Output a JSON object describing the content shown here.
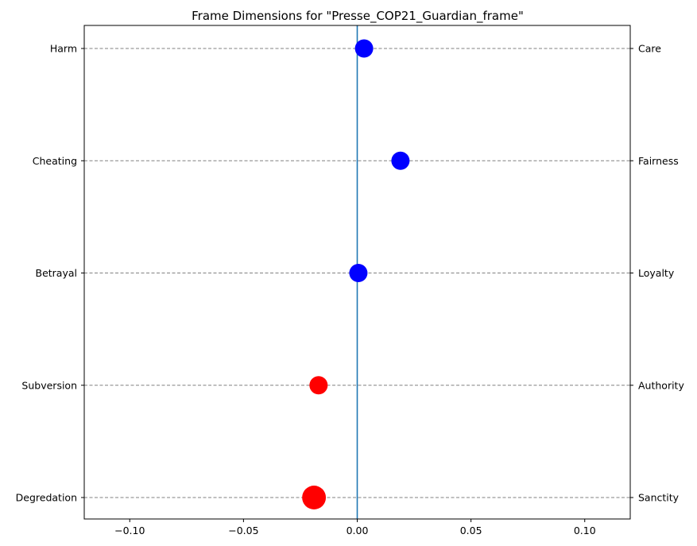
{
  "chart_data": {
    "type": "scatter",
    "title": "Frame Dimensions for \"Presse_COP21_Guardian_frame\"",
    "xlabel": "",
    "ylabel": "",
    "xlim": [
      -0.12,
      0.12
    ],
    "x_ticks": [
      -0.1,
      -0.05,
      0.0,
      0.05,
      0.1
    ],
    "x_tick_labels": [
      "−0.10",
      "−0.05",
      "0.00",
      "0.05",
      "0.10"
    ],
    "left_labels": [
      "Harm",
      "Cheating",
      "Betrayal",
      "Subversion",
      "Degredation"
    ],
    "right_labels": [
      "Care",
      "Fairness",
      "Loyalty",
      "Authority",
      "Sanctity"
    ],
    "points": [
      {
        "x": 0.003,
        "value_size": 1.0,
        "color": "#0000ff"
      },
      {
        "x": 0.019,
        "value_size": 1.0,
        "color": "#0000ff"
      },
      {
        "x": 0.0005,
        "value_size": 1.0,
        "color": "#0000ff"
      },
      {
        "x": -0.017,
        "value_size": 1.0,
        "color": "#ff0000"
      },
      {
        "x": -0.019,
        "value_size": 1.3,
        "color": "#ff0000"
      }
    ],
    "zero_line": {
      "x": 0,
      "color": "#1f77b4"
    },
    "grid": {
      "horizontal": true,
      "style": "dashed",
      "color": "#808080"
    }
  }
}
